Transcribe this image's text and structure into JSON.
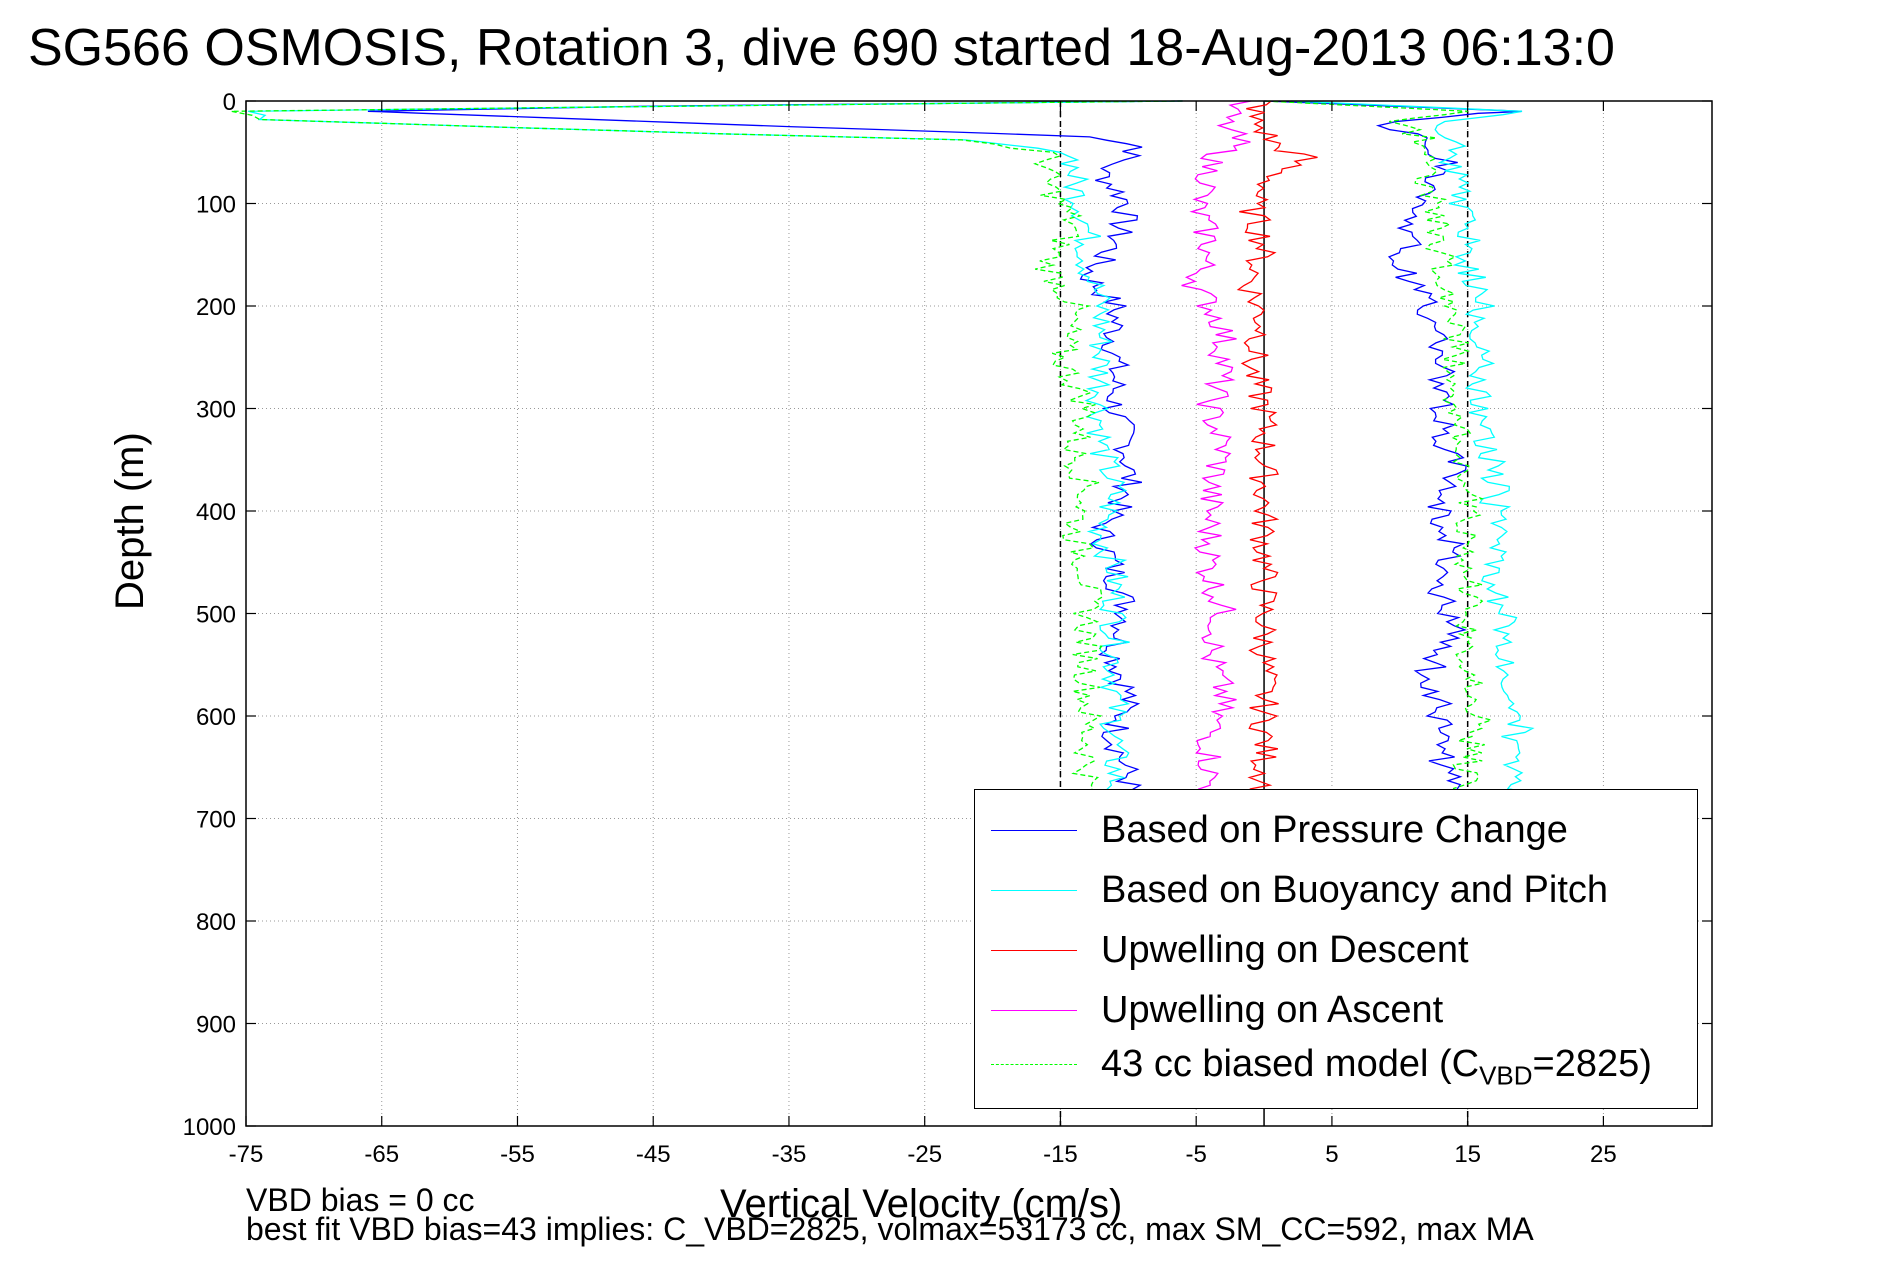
{
  "title": "SG566 OSMOSIS, Rotation 3, dive 690 started 18-Aug-2013 06:13:0",
  "notes": {
    "line1": "VBD bias = 0 cc",
    "line2": "best fit VBD bias=43 implies: C_VBD=2825, volmax=53173 cc, max SM_CC=592, max MA"
  },
  "chart_data": {
    "type": "line",
    "title": "SG566 OSMOSIS, Rotation 3, dive 690 started 18-Aug-2013 06:13:0",
    "xlabel": "Vertical Velocity (cm/s)",
    "ylabel": "Depth (m)",
    "xlim": [
      -75,
      33
    ],
    "ylim": [
      0,
      1000
    ],
    "y_reversed": true,
    "grid": true,
    "x_ticks": [
      -75,
      -65,
      -55,
      -45,
      -35,
      -25,
      -15,
      -5,
      5,
      15,
      25
    ],
    "y_ticks": [
      0,
      100,
      200,
      300,
      400,
      500,
      600,
      700,
      800,
      900,
      1000
    ],
    "reference_lines": [
      {
        "x": -15,
        "style": "dashed",
        "color": "#000000"
      },
      {
        "x": 0,
        "style": "solid",
        "color": "#000000"
      },
      {
        "x": 15,
        "style": "dashed",
        "color": "#000000"
      }
    ],
    "legend_position": "lower-right",
    "series": [
      {
        "name": "Based on Pressure Change",
        "color": "#0000ff",
        "style": "solid",
        "points": [
          [
            -6,
            0
          ],
          [
            -45,
            5
          ],
          [
            -66,
            10
          ],
          [
            -62,
            12
          ],
          [
            -35,
            25
          ],
          [
            -12,
            35
          ],
          [
            -9,
            45
          ],
          [
            -12,
            70
          ],
          [
            -10,
            100
          ],
          [
            -11,
            140
          ],
          [
            -13,
            170
          ],
          [
            -11,
            200
          ],
          [
            -11,
            250
          ],
          [
            -11,
            300
          ],
          [
            -10,
            340
          ],
          [
            -10,
            380
          ],
          [
            -12,
            420
          ],
          [
            -11,
            460
          ],
          [
            -10,
            500
          ],
          [
            -11,
            540
          ],
          [
            -10,
            580
          ],
          [
            -11,
            620
          ],
          [
            -10,
            660
          ],
          [
            -10,
            690
          ],
          [
            14,
            690
          ],
          [
            13,
            640
          ],
          [
            13,
            600
          ],
          [
            12,
            560
          ],
          [
            14,
            520
          ],
          [
            13,
            480
          ],
          [
            14,
            440
          ],
          [
            13,
            400
          ],
          [
            14,
            360
          ],
          [
            13,
            320
          ],
          [
            13,
            280
          ],
          [
            13,
            240
          ],
          [
            12,
            200
          ],
          [
            10,
            160
          ],
          [
            11,
            120
          ],
          [
            12,
            90
          ],
          [
            14,
            60
          ],
          [
            9,
            20
          ],
          [
            15,
            12
          ],
          [
            19,
            10
          ],
          [
            0,
            0
          ]
        ]
      },
      {
        "name": "Based on Buoyancy and Pitch",
        "color": "#00ffff",
        "style": "solid",
        "points": [
          [
            -6,
            0
          ],
          [
            -50,
            6
          ],
          [
            -75,
            10
          ],
          [
            -74,
            18
          ],
          [
            -55,
            26
          ],
          [
            -40,
            32
          ],
          [
            -22,
            38
          ],
          [
            -14,
            50
          ],
          [
            -14,
            80
          ],
          [
            -13,
            120
          ],
          [
            -13,
            160
          ],
          [
            -12,
            200
          ],
          [
            -12,
            250
          ],
          [
            -12,
            300
          ],
          [
            -12,
            340
          ],
          [
            -11,
            380
          ],
          [
            -12,
            420
          ],
          [
            -11,
            460
          ],
          [
            -11,
            500
          ],
          [
            -11,
            540
          ],
          [
            -11,
            580
          ],
          [
            -11,
            620
          ],
          [
            -11,
            660
          ],
          [
            -11,
            690
          ],
          [
            19,
            690
          ],
          [
            18,
            640
          ],
          [
            19,
            600
          ],
          [
            18,
            560
          ],
          [
            18,
            520
          ],
          [
            17,
            480
          ],
          [
            17,
            440
          ],
          [
            17,
            400
          ],
          [
            17,
            360
          ],
          [
            16,
            320
          ],
          [
            16,
            280
          ],
          [
            16,
            240
          ],
          [
            16,
            200
          ],
          [
            15,
            160
          ],
          [
            15,
            120
          ],
          [
            14,
            80
          ],
          [
            14,
            40
          ],
          [
            13,
            20
          ],
          [
            19,
            10
          ],
          [
            2,
            0
          ]
        ]
      },
      {
        "name": "Upwelling on Descent",
        "color": "#ff0000",
        "style": "solid",
        "points": [
          [
            0,
            0
          ],
          [
            -1,
            15
          ],
          [
            0,
            30
          ],
          [
            1,
            45
          ],
          [
            3,
            55
          ],
          [
            1,
            70
          ],
          [
            -1,
            100
          ],
          [
            0,
            140
          ],
          [
            -1,
            180
          ],
          [
            0,
            220
          ],
          [
            -1,
            260
          ],
          [
            0,
            300
          ],
          [
            0,
            340
          ],
          [
            0,
            380
          ],
          [
            0,
            420
          ],
          [
            0,
            460
          ],
          [
            0,
            500
          ],
          [
            0,
            540
          ],
          [
            0,
            580
          ],
          [
            0,
            620
          ],
          [
            0,
            660
          ],
          [
            0,
            690
          ]
        ]
      },
      {
        "name": "Upwelling on Ascent",
        "color": "#ff00ff",
        "style": "solid",
        "points": [
          [
            -2,
            0
          ],
          [
            -3,
            20
          ],
          [
            -2,
            40
          ],
          [
            -4,
            60
          ],
          [
            -4,
            80
          ],
          [
            -5,
            100
          ],
          [
            -4,
            140
          ],
          [
            -5,
            180
          ],
          [
            -3,
            220
          ],
          [
            -3,
            260
          ],
          [
            -4,
            300
          ],
          [
            -3,
            340
          ],
          [
            -4,
            380
          ],
          [
            -4,
            420
          ],
          [
            -4,
            460
          ],
          [
            -3,
            500
          ],
          [
            -4,
            540
          ],
          [
            -3,
            580
          ],
          [
            -4,
            620
          ],
          [
            -4,
            660
          ],
          [
            -4,
            690
          ]
        ]
      },
      {
        "name": "43 cc biased model (C_VBD=2825)",
        "color": "#00ff00",
        "style": "dashed",
        "points": [
          [
            -6,
            0
          ],
          [
            -50,
            6
          ],
          [
            -75,
            10
          ],
          [
            -74,
            18
          ],
          [
            -55,
            26
          ],
          [
            -40,
            32
          ],
          [
            -22,
            38
          ],
          [
            -16,
            50
          ],
          [
            -16,
            80
          ],
          [
            -14,
            120
          ],
          [
            -16,
            160
          ],
          [
            -14,
            200
          ],
          [
            -15,
            250
          ],
          [
            -13,
            300
          ],
          [
            -14,
            340
          ],
          [
            -13,
            380
          ],
          [
            -14,
            420
          ],
          [
            -13,
            460
          ],
          [
            -13,
            500
          ],
          [
            -13,
            540
          ],
          [
            -13,
            580
          ],
          [
            -13,
            620
          ],
          [
            -13,
            660
          ],
          [
            -13,
            690
          ],
          [
            15,
            690
          ],
          [
            15,
            640
          ],
          [
            16,
            600
          ],
          [
            15,
            560
          ],
          [
            15,
            520
          ],
          [
            15,
            480
          ],
          [
            15,
            440
          ],
          [
            15,
            400
          ],
          [
            15,
            360
          ],
          [
            14,
            320
          ],
          [
            14,
            280
          ],
          [
            14,
            240
          ],
          [
            14,
            200
          ],
          [
            13,
            160
          ],
          [
            13,
            120
          ],
          [
            12,
            80
          ],
          [
            12,
            40
          ],
          [
            10,
            20
          ],
          [
            15,
            10
          ],
          [
            0,
            0
          ]
        ]
      }
    ]
  },
  "legend": {
    "items": [
      {
        "label": "Based on Pressure Change",
        "color": "#0000ff"
      },
      {
        "label": "Based on Buoyancy and Pitch",
        "color": "#00ffff"
      },
      {
        "label": "Upwelling on Descent",
        "color": "#ff0000"
      },
      {
        "label": "Upwelling on Ascent",
        "color": "#ff00ff"
      },
      {
        "label": "43 cc biased model (C",
        "sub": "VBD",
        "suffix": "=2825)",
        "color": "#00ff00"
      }
    ]
  }
}
